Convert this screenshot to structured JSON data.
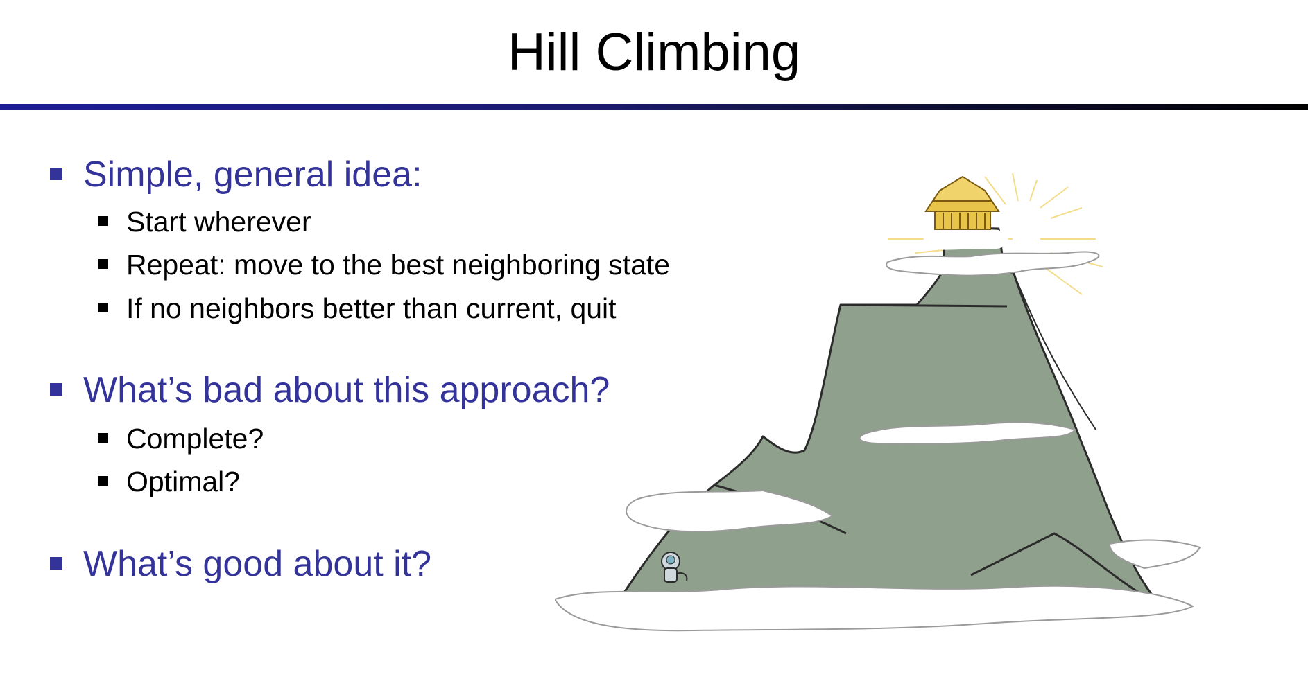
{
  "slide": {
    "title": "Hill Climbing",
    "sections": [
      {
        "heading": "Simple, general idea:",
        "items": [
          "Start wherever",
          "Repeat: move to the best neighboring state",
          "If no neighbors better than current, quit"
        ]
      },
      {
        "heading": "What’s bad about this approach?",
        "items": [
          "Complete?",
          "Optimal?"
        ]
      },
      {
        "heading": "What’s good about it?",
        "items": []
      }
    ]
  },
  "illustration": {
    "icons": [
      "mountain-icon",
      "temple-icon",
      "cloud-icon",
      "robot-climber-icon"
    ],
    "colors": {
      "accent": "#33339a",
      "mountain": "#8fa08c",
      "temple": "#e8c44a",
      "glow": "#f3dc8a"
    }
  }
}
